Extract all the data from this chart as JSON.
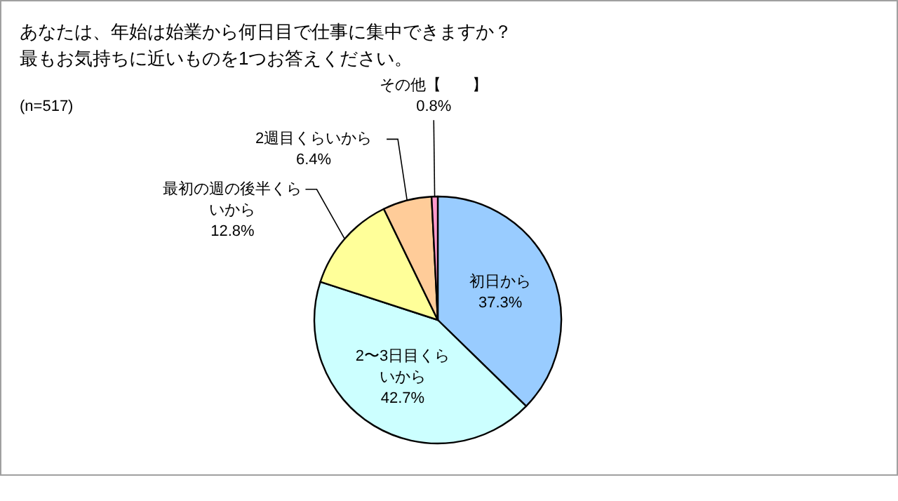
{
  "chart_data": {
    "type": "pie",
    "title": "あなたは、年始は始業から何日目で仕事に集中できますか？",
    "subtitle": "最もお気持ちに近いものを1つお答えください。",
    "annotations": [
      "(n=517)"
    ],
    "categories": [
      "初日から",
      "2〜3日目くらいから",
      "最初の週の後半くらいから",
      "2週目くらいから",
      "その他【　　】"
    ],
    "values": [
      37.3,
      42.7,
      12.8,
      6.4,
      0.8
    ],
    "value_labels": [
      "37.3%",
      "42.7%",
      "12.8%",
      "6.4%",
      "0.8%"
    ],
    "colors": [
      "#99ccff",
      "#ccffff",
      "#ffff99",
      "#ffcc99",
      "#ff99cc"
    ]
  }
}
